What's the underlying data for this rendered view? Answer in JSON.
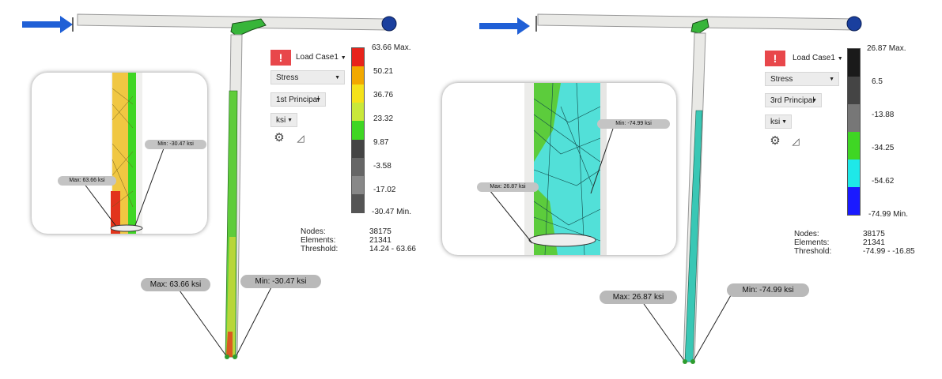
{
  "left": {
    "load_case": "Load Case1",
    "result_type": "Stress",
    "component": "1st Principal",
    "units": "ksi",
    "scale_ticks": [
      "63.66 Max.",
      "50.21",
      "36.76",
      "23.32",
      "9.87",
      "-3.58",
      "-17.02",
      "-30.47 Min."
    ],
    "scale_colors": [
      "#e8231b",
      "#f2a900",
      "#f5e21a",
      "#c9e83a",
      "#3fd624",
      "#444444",
      "#666666",
      "#888888",
      "#555555"
    ],
    "stats_labels": [
      "Nodes:",
      "Elements:",
      "Threshold:"
    ],
    "stats_values": [
      "38175",
      "21341",
      "14.24 - 63.66"
    ],
    "callout_max": "Max: 63.66 ksi",
    "callout_min": "Min: -30.47 ksi",
    "inset_max": "Max: 63.66 ksi",
    "inset_min": "Min: -30.47 ksi"
  },
  "right": {
    "load_case": "Load Case1",
    "result_type": "Stress",
    "component": "3rd Principal",
    "units": "ksi",
    "scale_ticks": [
      "26.87 Max.",
      "6.5",
      "-13.88",
      "-34.25",
      "-54.62",
      "-74.99 Min."
    ],
    "scale_colors": [
      "#1a1a1a",
      "#444444",
      "#777777",
      "#3fd624",
      "#1ee8e8",
      "#1a1aff"
    ],
    "stats_labels": [
      "Nodes:",
      "Elements:",
      "Threshold:"
    ],
    "stats_values": [
      "38175",
      "21341",
      "-74.99 - -16.85"
    ],
    "callout_max": "Max: 26.87 ksi",
    "callout_min": "Min: -74.99 ksi",
    "inset_max": "Max: 26.87 ksi",
    "inset_min": "Min: -74.99 ksi"
  },
  "alert_glyph": "!",
  "icons": [
    "load-arrow-icon",
    "pin-support-icon",
    "settings-gear-icon",
    "probe-triangle-icon",
    "alert-icon",
    "caret-down-icon"
  ]
}
